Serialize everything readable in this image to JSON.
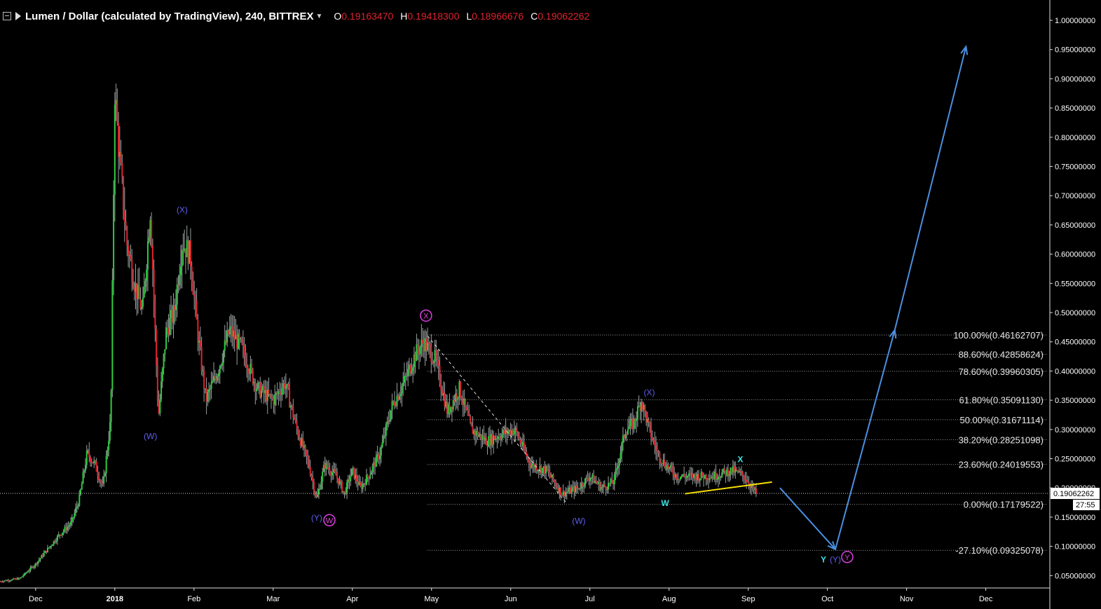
{
  "header": {
    "symbol": "Lumen / Dollar (calculated by TradingView), 240, BITTREX",
    "ohlc": [
      {
        "key": "O",
        "value": "0.19163470"
      },
      {
        "key": "H",
        "value": "0.19418300"
      },
      {
        "key": "L",
        "value": "0.18966676"
      },
      {
        "key": "C",
        "value": "0.19062262"
      }
    ]
  },
  "colors": {
    "background": "#000000",
    "up": "#2ecc40",
    "down": "#e0242e",
    "projection": "#4a90e2",
    "trendline": "#f5e000",
    "fib": "#9a9a9a",
    "wave_blue": "#5e5ef0",
    "wave_pink": "#e040e0",
    "wave_cyan": "#40e0e0"
  },
  "chart_data": {
    "type": "candlestick",
    "y_ticks": [
      "1.00000000",
      "0.95000000",
      "0.90000000",
      "0.85000000",
      "0.80000000",
      "0.75000000",
      "0.70000000",
      "0.65000000",
      "0.60000000",
      "0.55000000",
      "0.50000000",
      "0.45000000",
      "0.40000000",
      "0.35000000",
      "0.30000000",
      "0.25000000",
      "0.20000000",
      "0.15000000",
      "0.10000000",
      "0.05000000"
    ],
    "y_tick_values": [
      1.0,
      0.95,
      0.9,
      0.85,
      0.8,
      0.75,
      0.7,
      0.65,
      0.6,
      0.55,
      0.5,
      0.45,
      0.4,
      0.35,
      0.3,
      0.25,
      0.2,
      0.15,
      0.1,
      0.05
    ],
    "ylim": [
      0.03,
      1.03
    ],
    "x_labels": [
      "Dec",
      "2018",
      "Feb",
      "Mar",
      "Apr",
      "May",
      "Jun",
      "Jul",
      "Aug",
      "Sep",
      "Oct",
      "Nov",
      "Dec"
    ],
    "x_label_pos": [
      0.0,
      1.0,
      2.0,
      3.0,
      4.0,
      5.0,
      6.0,
      7.0,
      8.0,
      9.0,
      10.0,
      11.0,
      12.0
    ],
    "xlim": [
      -0.45,
      12.8
    ],
    "price_path": [
      [
        -0.45,
        0.04
      ],
      [
        -0.2,
        0.045
      ],
      [
        0.0,
        0.07
      ],
      [
        0.15,
        0.095
      ],
      [
        0.3,
        0.12
      ],
      [
        0.45,
        0.14
      ],
      [
        0.55,
        0.18
      ],
      [
        0.65,
        0.26
      ],
      [
        0.75,
        0.24
      ],
      [
        0.85,
        0.2
      ],
      [
        0.95,
        0.32
      ],
      [
        1.0,
        0.88
      ],
      [
        1.05,
        0.78
      ],
      [
        1.15,
        0.62
      ],
      [
        1.25,
        0.55
      ],
      [
        1.35,
        0.5
      ],
      [
        1.45,
        0.68
      ],
      [
        1.55,
        0.32
      ],
      [
        1.65,
        0.47
      ],
      [
        1.75,
        0.5
      ],
      [
        1.85,
        0.62
      ],
      [
        1.95,
        0.6
      ],
      [
        2.05,
        0.46
      ],
      [
        2.15,
        0.35
      ],
      [
        2.3,
        0.4
      ],
      [
        2.45,
        0.47
      ],
      [
        2.6,
        0.44
      ],
      [
        2.8,
        0.37
      ],
      [
        3.0,
        0.35
      ],
      [
        3.15,
        0.38
      ],
      [
        3.3,
        0.3
      ],
      [
        3.45,
        0.24
      ],
      [
        3.55,
        0.18
      ],
      [
        3.65,
        0.24
      ],
      [
        3.8,
        0.22
      ],
      [
        3.9,
        0.19
      ],
      [
        4.0,
        0.23
      ],
      [
        4.1,
        0.2
      ],
      [
        4.2,
        0.22
      ],
      [
        4.35,
        0.26
      ],
      [
        4.5,
        0.34
      ],
      [
        4.65,
        0.38
      ],
      [
        4.8,
        0.43
      ],
      [
        4.9,
        0.45
      ],
      [
        5.05,
        0.42
      ],
      [
        5.2,
        0.33
      ],
      [
        5.35,
        0.37
      ],
      [
        5.5,
        0.3
      ],
      [
        5.7,
        0.28
      ],
      [
        5.85,
        0.29
      ],
      [
        6.05,
        0.3
      ],
      [
        6.25,
        0.24
      ],
      [
        6.45,
        0.23
      ],
      [
        6.65,
        0.19
      ],
      [
        6.85,
        0.2
      ],
      [
        7.0,
        0.22
      ],
      [
        7.15,
        0.2
      ],
      [
        7.3,
        0.21
      ],
      [
        7.45,
        0.3
      ],
      [
        7.55,
        0.31
      ],
      [
        7.65,
        0.35
      ],
      [
        7.75,
        0.3
      ],
      [
        7.85,
        0.26
      ],
      [
        7.95,
        0.24
      ],
      [
        8.1,
        0.22
      ],
      [
        8.3,
        0.22
      ],
      [
        8.55,
        0.22
      ],
      [
        8.8,
        0.23
      ],
      [
        8.95,
        0.22
      ],
      [
        9.05,
        0.2
      ],
      [
        9.1,
        0.19
      ]
    ],
    "fib_levels": [
      {
        "label": "100.00%(0.46162707)",
        "value": 0.46162707
      },
      {
        "label": "88.60%(0.42858624)",
        "value": 0.42858624
      },
      {
        "label": "78.60%(0.39960305)",
        "value": 0.39960305
      },
      {
        "label": "61.80%(0.35091130)",
        "value": 0.3509113
      },
      {
        "label": "50.00%(0.31671114)",
        "value": 0.31671114
      },
      {
        "label": "38.20%(0.28251098)",
        "value": 0.28251098
      },
      {
        "label": "23.60%(0.24019553)",
        "value": 0.24019553
      },
      {
        "label": "0.00%(0.17179522)",
        "value": 0.17179522
      },
      {
        "label": "-27.10%(0.09325078)",
        "value": 0.09325078
      }
    ],
    "fib_x_start": 4.95,
    "last_price": {
      "label": "0.19062262",
      "value": 0.19062262
    },
    "countdown": "27:55",
    "trendline": [
      [
        8.2,
        0.19
      ],
      [
        9.3,
        0.21
      ]
    ],
    "dashed_line": [
      [
        4.95,
        0.46
      ],
      [
        6.7,
        0.175
      ]
    ],
    "projection": [
      [
        9.4,
        0.2
      ],
      [
        10.1,
        0.095
      ],
      [
        10.85,
        0.47
      ],
      [
        11.75,
        0.955
      ]
    ],
    "wave_labels": [
      {
        "text": "(X)",
        "x": 1.85,
        "y": 0.672,
        "color": "blue",
        "circle": false
      },
      {
        "text": "(W)",
        "x": 1.45,
        "y": 0.285,
        "color": "blue",
        "circle": false
      },
      {
        "text": "(Y)",
        "x": 3.55,
        "y": 0.145,
        "color": "blue",
        "circle": false
      },
      {
        "text": "W",
        "x": 3.71,
        "y": 0.14,
        "color": "pink",
        "circle": true
      },
      {
        "text": "X",
        "x": 4.93,
        "y": 0.49,
        "color": "pink",
        "circle": true
      },
      {
        "text": "(W)",
        "x": 6.86,
        "y": 0.14,
        "color": "blue",
        "circle": false
      },
      {
        "text": "(X)",
        "x": 7.75,
        "y": 0.36,
        "color": "blue",
        "circle": false
      },
      {
        "text": "W",
        "x": 7.95,
        "y": 0.17,
        "color": "cyan",
        "circle": false
      },
      {
        "text": "X",
        "x": 8.9,
        "y": 0.245,
        "color": "cyan",
        "circle": false
      },
      {
        "text": "Y",
        "x": 9.95,
        "y": 0.074,
        "color": "cyan",
        "circle": false
      },
      {
        "text": "(Y)",
        "x": 10.1,
        "y": 0.074,
        "color": "blue",
        "circle": false
      },
      {
        "text": "Y",
        "x": 10.25,
        "y": 0.077,
        "color": "pink",
        "circle": true
      }
    ]
  }
}
